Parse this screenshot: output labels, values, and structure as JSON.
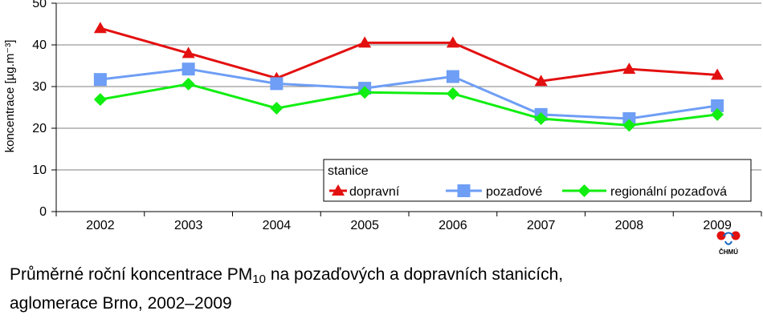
{
  "chart_data": {
    "type": "line",
    "categories": [
      "2002",
      "2003",
      "2004",
      "2005",
      "2006",
      "2007",
      "2008",
      "2009"
    ],
    "ylabel": "koncentrace [µg.m⁻³]",
    "ylim": [
      0,
      50
    ],
    "yticks": [
      0,
      10,
      20,
      30,
      40,
      50
    ],
    "grid": true,
    "legend": {
      "title": "stanice",
      "position": "bottom-right"
    },
    "series": [
      {
        "name": "dopravní",
        "marker": "triangle",
        "color": "#e31010",
        "values": [
          44.0,
          38.0,
          32.0,
          40.5,
          40.5,
          31.3,
          34.2,
          32.8
        ]
      },
      {
        "name": "pozaďové",
        "marker": "square",
        "color": "#6e9ef5",
        "values": [
          31.7,
          34.2,
          30.7,
          29.6,
          32.4,
          23.3,
          22.3,
          25.4
        ]
      },
      {
        "name": "regionální pozaďová",
        "marker": "diamond",
        "color": "#11ee11",
        "values": [
          26.9,
          30.6,
          24.8,
          28.6,
          28.3,
          22.3,
          20.7,
          23.3
        ]
      }
    ]
  },
  "caption": {
    "line1_pre": "Průměrné roční koncentrace PM",
    "line1_sub": "10",
    "line1_post": " na pozaďových a dopravních stanicích,",
    "line2": "aglomerace Brno, 2002–2009"
  },
  "logo": {
    "text": "ČHMÚ",
    "colors": [
      "#e31010",
      "#1565c0"
    ]
  }
}
